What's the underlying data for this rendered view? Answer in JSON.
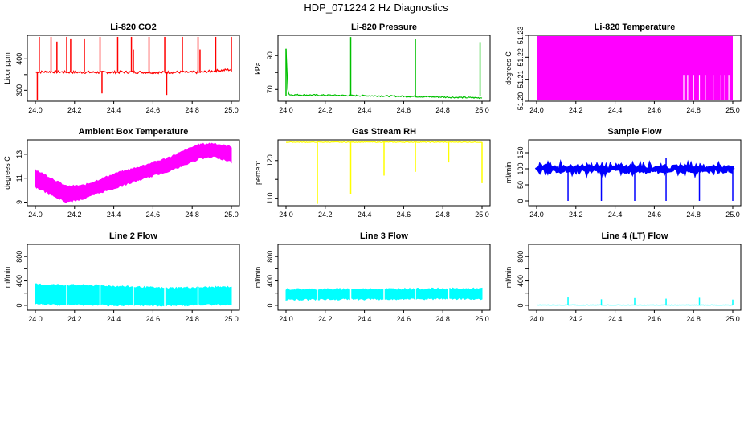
{
  "page": {
    "title": "HDP_071224  2 Hz Diagnostics"
  },
  "chart_data": [
    {
      "type": "line",
      "title": "Li-820 CO2",
      "xlabel": "",
      "ylabel": "Licor ppm",
      "color": "#ff0000",
      "xlim": [
        24.0,
        25.0
      ],
      "ylim": [
        265,
        475
      ],
      "xticks": [
        "24.0",
        "24.2",
        "24.4",
        "24.6",
        "24.8",
        "25.0"
      ],
      "yticks": [
        300,
        350,
        400
      ],
      "ytick_labels": [
        "300",
        "",
        "400"
      ],
      "series": [
        {
          "name": "Li-820 CO2",
          "baseline": 360,
          "noise": 4,
          "x": [
            24.0,
            24.07,
            24.15,
            24.32,
            24.49,
            24.66,
            24.74,
            24.83,
            24.92,
            25.0
          ],
          "y": [
            358,
            359,
            358,
            357,
            358,
            357,
            358,
            357,
            362,
            366
          ]
        }
      ],
      "spikes": [
        {
          "x": 24.01,
          "y": 270
        },
        {
          "x": 24.02,
          "y": 470
        },
        {
          "x": 24.08,
          "y": 470
        },
        {
          "x": 24.11,
          "y": 455
        },
        {
          "x": 24.16,
          "y": 470
        },
        {
          "x": 24.18,
          "y": 465
        },
        {
          "x": 24.25,
          "y": 465
        },
        {
          "x": 24.33,
          "y": 470
        },
        {
          "x": 24.34,
          "y": 290
        },
        {
          "x": 24.42,
          "y": 470
        },
        {
          "x": 24.49,
          "y": 470
        },
        {
          "x": 24.5,
          "y": 430
        },
        {
          "x": 24.58,
          "y": 470
        },
        {
          "x": 24.66,
          "y": 470
        },
        {
          "x": 24.67,
          "y": 285
        },
        {
          "x": 24.75,
          "y": 470
        },
        {
          "x": 24.83,
          "y": 470
        },
        {
          "x": 24.84,
          "y": 430
        },
        {
          "x": 24.92,
          "y": 470
        },
        {
          "x": 25.0,
          "y": 470
        }
      ]
    },
    {
      "type": "line",
      "title": "Li-820 Pressure",
      "xlabel": "",
      "ylabel": "kPa",
      "color": "#00c000",
      "xlim": [
        24.0,
        25.0
      ],
      "ylim": [
        63,
        102
      ],
      "xticks": [
        "24.0",
        "24.2",
        "24.4",
        "24.6",
        "24.8",
        "25.0"
      ],
      "yticks": [
        70,
        80,
        90
      ],
      "ytick_labels": [
        "70",
        "",
        "90"
      ],
      "series": [
        {
          "name": "Li-820 Pressure",
          "baseline": 66,
          "noise": 0.4,
          "x": [
            24.0,
            24.01,
            24.02,
            24.33,
            24.66,
            24.99,
            25.0
          ],
          "y": [
            94,
            68,
            66.8,
            66.4,
            65.8,
            65.0,
            65.2
          ]
        }
      ],
      "spikes": [
        {
          "x": 24.0,
          "y": 94
        },
        {
          "x": 24.33,
          "y": 101
        },
        {
          "x": 24.66,
          "y": 100
        },
        {
          "x": 24.99,
          "y": 98
        }
      ]
    },
    {
      "type": "area",
      "title": "Li-820 Temperature",
      "xlabel": "",
      "ylabel": "degrees C",
      "color": "#ff00ff",
      "xlim": [
        24.0,
        25.0
      ],
      "ylim": [
        51.2,
        51.23
      ],
      "xticks": [
        "24.0",
        "24.2",
        "24.4",
        "24.6",
        "24.8",
        "25.0"
      ],
      "yticks": [
        51.2,
        51.21,
        51.22,
        51.23
      ],
      "ytick_labels": [
        "51.20",
        "51.21",
        "51.22",
        "51.23"
      ],
      "series": [
        {
          "name": "Li-820 Temperature",
          "x": [
            24.0,
            24.73,
            25.0
          ],
          "y": [
            51.23,
            51.23,
            51.23
          ]
        }
      ],
      "gaps": [
        24.75,
        24.77,
        24.8,
        24.83,
        24.86,
        24.9,
        24.94,
        24.96,
        24.98
      ]
    },
    {
      "type": "area",
      "title": "Ambient Box Temperature",
      "xlabel": "",
      "ylabel": "degrees C",
      "color": "#ff00ff",
      "xlim": [
        24.0,
        25.0
      ],
      "ylim": [
        8.7,
        14.2
      ],
      "xticks": [
        "24.0",
        "24.2",
        "24.4",
        "24.6",
        "24.8",
        "25.0"
      ],
      "yticks": [
        9,
        11,
        13
      ],
      "ytick_labels": [
        "9",
        "11",
        "13"
      ],
      "series": [
        {
          "name": "Ambient Box Temperature",
          "x": [
            24.0,
            24.08,
            24.16,
            24.25,
            24.33,
            24.41,
            24.5,
            24.58,
            24.66,
            24.75,
            24.83,
            24.91,
            25.0
          ],
          "upper": [
            11.7,
            11.0,
            10.3,
            10.4,
            10.9,
            11.4,
            11.8,
            12.2,
            12.6,
            13.2,
            13.8,
            13.9,
            13.6
          ],
          "lower": [
            10.3,
            9.6,
            9.0,
            9.3,
            9.8,
            10.2,
            10.7,
            11.1,
            11.5,
            12.0,
            12.6,
            12.8,
            12.4
          ]
        }
      ]
    },
    {
      "type": "line",
      "title": "Gas Stream RH",
      "xlabel": "",
      "ylabel": "percent",
      "color": "#ffff00",
      "xlim": [
        24.0,
        25.0
      ],
      "ylim": [
        108,
        125.5
      ],
      "xticks": [
        "24.0",
        "24.2",
        "24.4",
        "24.6",
        "24.8",
        "25.0"
      ],
      "yticks": [
        110,
        115,
        120
      ],
      "ytick_labels": [
        "110",
        "",
        "120"
      ],
      "series": [
        {
          "name": "Gas Stream RH",
          "baseline": 124.9,
          "noise": 0.1,
          "x": [
            24.0,
            25.0
          ],
          "y": [
            124.9,
            124.9
          ]
        }
      ],
      "spikes": [
        {
          "x": 24.16,
          "y": 108.5
        },
        {
          "x": 24.33,
          "y": 111
        },
        {
          "x": 24.5,
          "y": 116
        },
        {
          "x": 24.66,
          "y": 117
        },
        {
          "x": 24.83,
          "y": 119.5
        },
        {
          "x": 25.0,
          "y": 114
        }
      ]
    },
    {
      "type": "line",
      "title": "Sample Flow",
      "xlabel": "",
      "ylabel": "ml/min",
      "color": "#0000ff",
      "xlim": [
        24.0,
        25.0
      ],
      "ylim": [
        -15,
        190
      ],
      "xticks": [
        "24.0",
        "24.2",
        "24.4",
        "24.6",
        "24.8",
        "25.0"
      ],
      "yticks": [
        0,
        50,
        100,
        150
      ],
      "ytick_labels": [
        "0",
        "50",
        "100",
        "150"
      ],
      "series": [
        {
          "name": "Sample Flow",
          "baseline": 100,
          "noise": 7,
          "x": [
            24.0,
            25.0
          ],
          "y": [
            100,
            100
          ]
        }
      ],
      "spikes": [
        {
          "x": 24.16,
          "y": 0
        },
        {
          "x": 24.33,
          "y": 0
        },
        {
          "x": 24.5,
          "y": 0
        },
        {
          "x": 24.66,
          "y": 0
        },
        {
          "x": 24.66,
          "y": 135
        },
        {
          "x": 24.83,
          "y": 0
        },
        {
          "x": 25.0,
          "y": 0
        }
      ]
    },
    {
      "type": "area",
      "title": "Line 2 Flow",
      "xlabel": "",
      "ylabel": "ml/min",
      "color": "#00ffff",
      "xlim": [
        24.0,
        25.0
      ],
      "ylim": [
        -80,
        1000
      ],
      "xticks": [
        "24.0",
        "24.2",
        "24.4",
        "24.6",
        "24.8",
        "25.0"
      ],
      "yticks": [
        0,
        200,
        400,
        600,
        800
      ],
      "ytick_labels": [
        "0",
        "",
        "400",
        "",
        "800"
      ],
      "series": [
        {
          "name": "Line 2 Flow",
          "x": [
            24.0,
            24.16,
            24.33,
            24.5,
            24.66,
            24.83,
            25.0
          ],
          "upper": [
            340,
            330,
            320,
            300,
            280,
            290,
            300
          ],
          "lower": [
            20,
            15,
            10,
            0,
            0,
            10,
            20
          ]
        }
      ],
      "gaps": [
        24.16,
        24.33,
        24.5,
        24.66,
        24.83
      ]
    },
    {
      "type": "area",
      "title": "Line 3 Flow",
      "xlabel": "",
      "ylabel": "ml/min",
      "color": "#00ffff",
      "xlim": [
        24.0,
        25.0
      ],
      "ylim": [
        -80,
        1000
      ],
      "xticks": [
        "24.0",
        "24.2",
        "24.4",
        "24.6",
        "24.8",
        "25.0"
      ],
      "yticks": [
        0,
        200,
        400,
        600,
        800
      ],
      "ytick_labels": [
        "0",
        "",
        "400",
        "",
        "800"
      ],
      "series": [
        {
          "name": "Line 3 Flow",
          "x": [
            24.0,
            25.0
          ],
          "upper": [
            260,
            270
          ],
          "lower": [
            100,
            110
          ]
        }
      ],
      "gaps": [
        24.16,
        24.33,
        24.5,
        24.66,
        24.83
      ]
    },
    {
      "type": "line",
      "title": "Line 4 (LT) Flow",
      "xlabel": "",
      "ylabel": "ml/min",
      "color": "#00ffff",
      "xlim": [
        24.0,
        25.0
      ],
      "ylim": [
        -80,
        1000
      ],
      "xticks": [
        "24.0",
        "24.2",
        "24.4",
        "24.6",
        "24.8",
        "25.0"
      ],
      "yticks": [
        0,
        200,
        400,
        600,
        800
      ],
      "ytick_labels": [
        "0",
        "",
        "400",
        "",
        "800"
      ],
      "series": [
        {
          "name": "Line 4 (LT) Flow",
          "baseline": 5,
          "noise": 2,
          "x": [
            24.0,
            25.0
          ],
          "y": [
            5,
            5
          ]
        }
      ],
      "spikes": [
        {
          "x": 24.16,
          "y": 130
        },
        {
          "x": 24.33,
          "y": 100
        },
        {
          "x": 24.5,
          "y": 120
        },
        {
          "x": 24.66,
          "y": 110
        },
        {
          "x": 24.83,
          "y": 125
        },
        {
          "x": 25.0,
          "y": 95
        }
      ]
    }
  ]
}
